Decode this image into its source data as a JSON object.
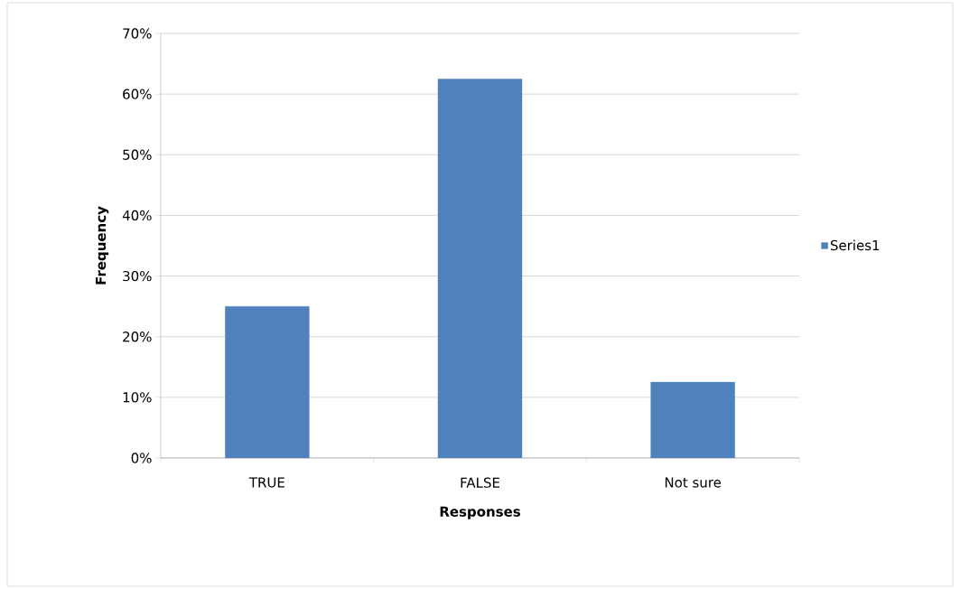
{
  "chart_data": {
    "type": "bar",
    "xlabel": "Responses",
    "ylabel": "Frequency",
    "categories": [
      "TRUE",
      "FALSE",
      "Not sure"
    ],
    "series": [
      {
        "name": "Series1",
        "color": "#4f81bd",
        "values": [
          25,
          62.5,
          12.5
        ]
      }
    ],
    "ylim": [
      0,
      70
    ],
    "yticks": [
      {
        "value": 0,
        "label": "0%"
      },
      {
        "value": 10,
        "label": "10%"
      },
      {
        "value": 20,
        "label": "20%"
      },
      {
        "value": 30,
        "label": "30%"
      },
      {
        "value": 40,
        "label": "40%"
      },
      {
        "value": 50,
        "label": "50%"
      },
      {
        "value": 60,
        "label": "60%"
      },
      {
        "value": 70,
        "label": "70%"
      }
    ],
    "grid": "y",
    "legend": "right"
  }
}
